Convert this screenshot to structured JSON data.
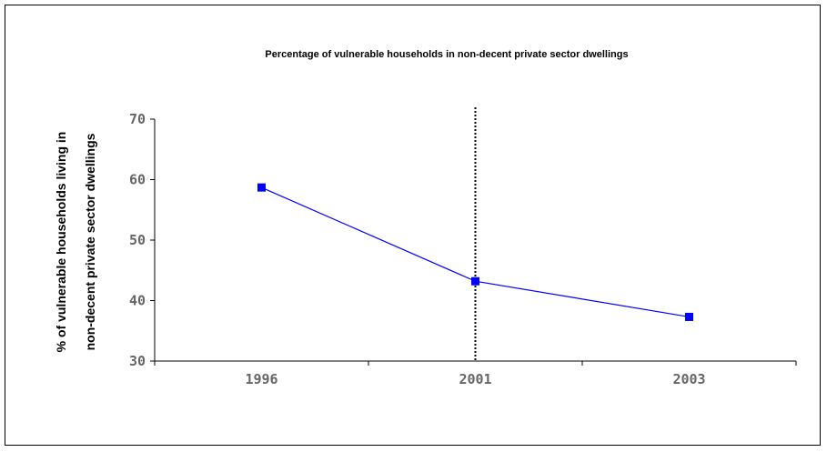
{
  "chart_data": {
    "type": "line",
    "title": "Percentage of vulnerable households in non-decent private sector dwellings",
    "ylabel_lines": [
      "% of vulnerable households living in",
      "non-decent private sector dwellings"
    ],
    "xlabel": "",
    "categories": [
      "1996",
      "2001",
      "2003"
    ],
    "series": [
      {
        "values": [
          58.7,
          43.2,
          37.3
        ]
      }
    ],
    "ylim": [
      30,
      70
    ],
    "yticks": [
      30,
      40,
      50,
      60,
      70
    ],
    "reference_line_at": "2001",
    "grid": false,
    "line_color": "#0000ff"
  }
}
